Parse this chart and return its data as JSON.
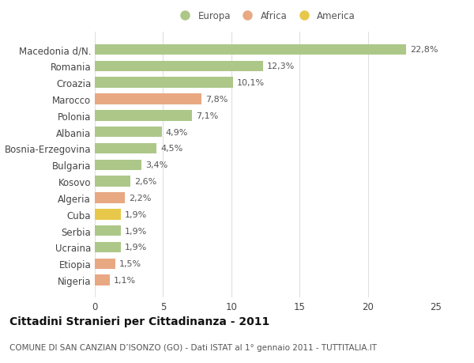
{
  "categories": [
    "Macedonia d/N.",
    "Romania",
    "Croazia",
    "Marocco",
    "Polonia",
    "Albania",
    "Bosnia-Erzegovina",
    "Bulgaria",
    "Kosovo",
    "Algeria",
    "Cuba",
    "Serbia",
    "Ucraina",
    "Etiopia",
    "Nigeria"
  ],
  "values": [
    22.8,
    12.3,
    10.1,
    7.8,
    7.1,
    4.9,
    4.5,
    3.4,
    2.6,
    2.2,
    1.9,
    1.9,
    1.9,
    1.5,
    1.1
  ],
  "labels": [
    "22,8%",
    "12,3%",
    "10,1%",
    "7,8%",
    "7,1%",
    "4,9%",
    "4,5%",
    "3,4%",
    "2,6%",
    "2,2%",
    "1,9%",
    "1,9%",
    "1,9%",
    "1,5%",
    "1,1%"
  ],
  "colors": [
    "#adc789",
    "#adc789",
    "#adc789",
    "#e8a882",
    "#adc789",
    "#adc789",
    "#adc789",
    "#adc789",
    "#adc789",
    "#e8a882",
    "#e8c84a",
    "#adc789",
    "#adc789",
    "#e8a882",
    "#e8a882"
  ],
  "legend_labels": [
    "Europa",
    "Africa",
    "America"
  ],
  "legend_colors": [
    "#adc789",
    "#e8a882",
    "#e8c84a"
  ],
  "title": "Cittadini Stranieri per Cittadinanza - 2011",
  "subtitle": "COMUNE DI SAN CANZIAN D’ISONZO (GO) - Dati ISTAT al 1° gennaio 2011 - TUTTITALIA.IT",
  "xlim": [
    0,
    25
  ],
  "xticks": [
    0,
    5,
    10,
    15,
    20,
    25
  ],
  "background_color": "#ffffff",
  "grid_color": "#e0e0e0",
  "bar_height": 0.65,
  "title_fontsize": 10,
  "subtitle_fontsize": 7.5,
  "tick_fontsize": 8.5,
  "label_fontsize": 8
}
